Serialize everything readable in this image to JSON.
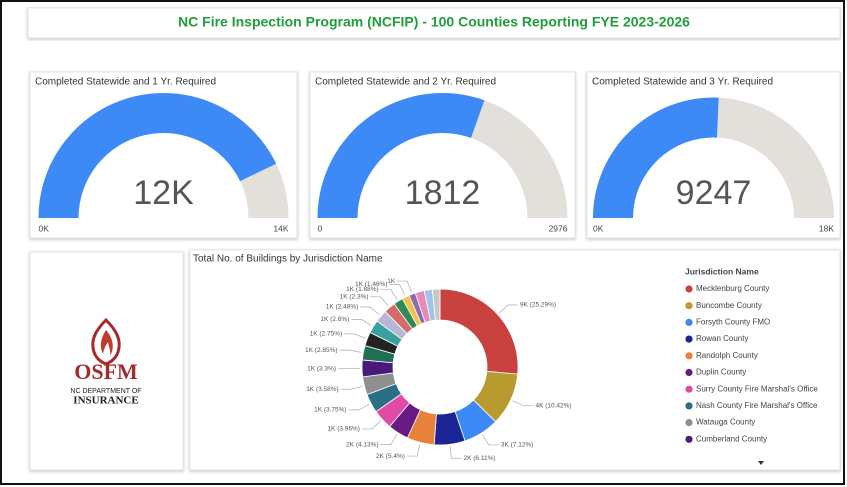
{
  "header": {
    "title": "NC Fire Inspection Program (NCFIP) - 100 Counties Reporting FYE 2023-2026"
  },
  "gauges": [
    {
      "title": "Completed Statewide and 1 Yr. Required",
      "value": 12000,
      "value_label": "12K",
      "min": 0,
      "min_label": "0K",
      "max": 14000,
      "max_label": "14K",
      "color": "#3d8af7",
      "track_color": "#e3dfdb"
    },
    {
      "title": "Completed Statewide and 2 Yr. Required",
      "value": 1812,
      "min": 0,
      "max": 2976,
      "color": "#3d8af7",
      "track_color": "#e3dfdb"
    },
    {
      "title": "Completed Statewide and 3 Yr. Required",
      "value": 9247,
      "min": 0,
      "min_label": "0K",
      "max": 18000,
      "max_label": "18K",
      "color": "#3d8af7",
      "track_color": "#e3dfdb"
    }
  ],
  "logo": {
    "name": "OSFM",
    "line1": "NC DEPARTMENT OF",
    "line2": "INSURANCE"
  },
  "donut": {
    "title": "Total No. of Buildings by Jurisdiction Name",
    "legend_title": "Jurisdiction Name",
    "slices": [
      {
        "name": "Mecklenburg County",
        "value": 25.29,
        "label": "9K (25.29%)",
        "color": "#c9413f"
      },
      {
        "name": "Buncombe County",
        "value": 10.42,
        "label": "4K (10.42%)",
        "color": "#b89a2e"
      },
      {
        "name": "Forsyth County FMO",
        "value": 7.12,
        "label": "3K (7.12%)",
        "color": "#3d8af7"
      },
      {
        "name": "Rowan County",
        "value": 6.11,
        "label": "2K (6.11%)",
        "color": "#1b2594"
      },
      {
        "name": "Randolph County",
        "value": 5.4,
        "label": "2K (5.4%)",
        "color": "#e8823a"
      },
      {
        "name": "Duplin County",
        "value": 4.13,
        "label": "2K (4.13%)",
        "color": "#6a1b82"
      },
      {
        "name": "Surry County Fire Marshal's Office",
        "value": 3.96,
        "label": "1K (3.96%)",
        "color": "#e24aa8"
      },
      {
        "name": "Nash County Fire Marshal's Office",
        "value": 3.75,
        "label": "1K (3.75%)",
        "color": "#2b6f86"
      },
      {
        "name": "Watauga County",
        "value": 3.58,
        "label": "1K (3.58%)",
        "color": "#8f8f8f"
      },
      {
        "name": "Cumberland County",
        "value": 3.3,
        "label": "1K (3.3%)",
        "color": "#4a1a78"
      },
      {
        "value": 2.85,
        "label": "1K (2.85%)",
        "color": "#1f6e55"
      },
      {
        "value": 2.75,
        "label": "1K (2.75%)",
        "color": "#232323"
      },
      {
        "value": 2.6,
        "label": "1K (2.6%)",
        "color": "#39a0a0"
      },
      {
        "value": 2.48,
        "label": "1K (2.48%)",
        "color": "#b7b7d8"
      },
      {
        "value": 2.3,
        "label": "1K (2.3%)",
        "color": "#d46b6b"
      },
      {
        "value": 1.88,
        "label": "1K (1.88%)",
        "color": "#2e8b57"
      },
      {
        "value": 1.46,
        "label": "1K (1.46%)",
        "color": "#f2c14e"
      },
      {
        "value": 1.3,
        "label": "1K",
        "color": "#8c6bb1"
      },
      {
        "value": 1.8,
        "label": null,
        "color": "#e88ab8"
      },
      {
        "value": 1.6,
        "label": null,
        "color": "#a0c4e8"
      },
      {
        "value": 1.5,
        "label": null,
        "color": "#c8c8c8"
      }
    ]
  }
}
